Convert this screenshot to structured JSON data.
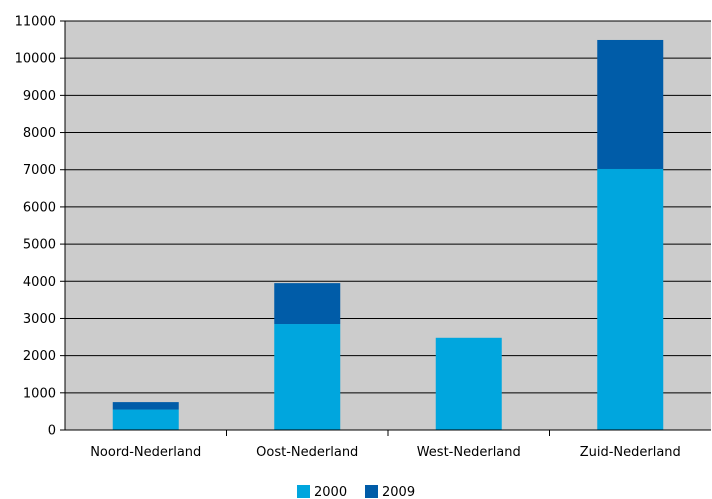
{
  "chart_data": {
    "type": "bar",
    "stacked": true,
    "categories": [
      "Noord-Nederland",
      "Oost-Nederland",
      "West-Nederland",
      "Zuid-Nederland"
    ],
    "series": [
      {
        "name": "2000",
        "values": [
          550,
          2850,
          2480,
          7020
        ],
        "color": "#00a6de"
      },
      {
        "name": "2009",
        "values": [
          200,
          1100,
          0,
          3470
        ],
        "color": "#005ca8"
      }
    ],
    "yticks": [
      "0",
      "1000",
      "2000",
      "3000",
      "4000",
      "5000",
      "6000",
      "7000",
      "8000",
      "9000",
      "10000",
      "11000"
    ],
    "ylim": [
      0,
      11000
    ],
    "grid": true,
    "legend_position": "bottom-center",
    "plot_background": "#cccccc"
  }
}
